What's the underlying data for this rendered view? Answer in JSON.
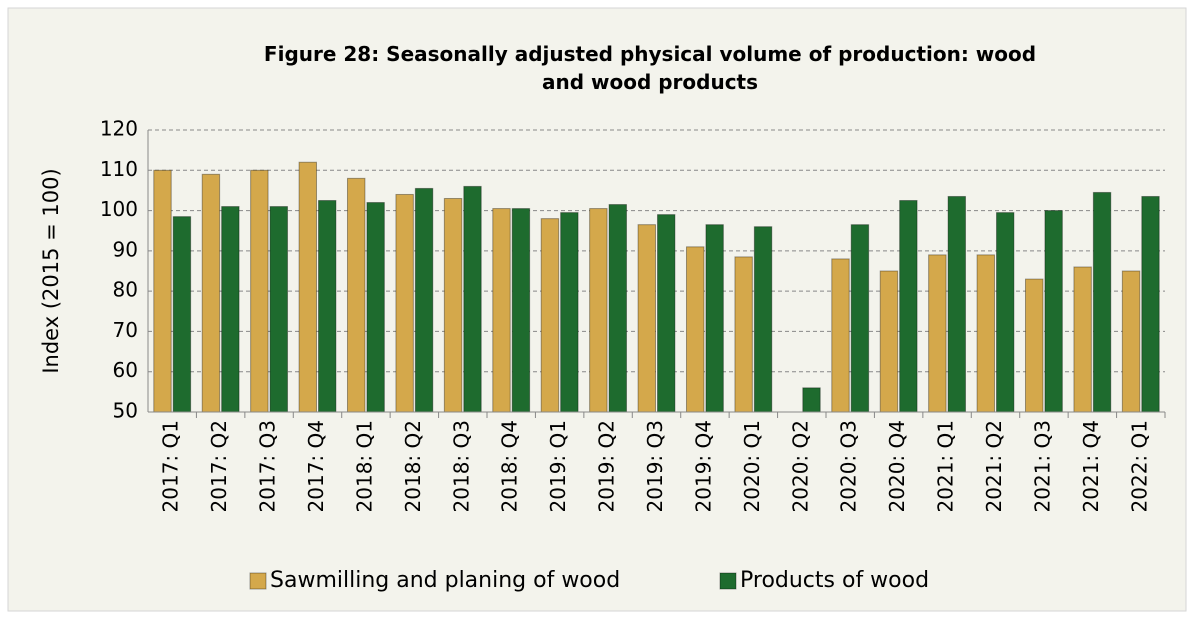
{
  "chart_data": {
    "type": "bar",
    "title": "Figure 28: Seasonally adjusted physical volume of production: wood and wood products",
    "y_label": "Index (2015 = 100)",
    "categories": [
      "2017: Q1",
      "2017: Q2",
      "2017: Q3",
      "2017: Q4",
      "2018: Q1",
      "2018: Q2",
      "2018: Q3",
      "2018: Q4",
      "2019: Q1",
      "2019: Q2",
      "2019: Q3",
      "2019: Q4",
      "2020: Q1",
      "2020: Q2",
      "2020: Q3",
      "2020: Q4",
      "2021: Q1",
      "2021: Q2",
      "2021: Q3",
      "2021: Q4",
      "2022: Q1"
    ],
    "series": [
      {
        "name": "Sawmilling and planing of wood",
        "color": "#d4a84b",
        "values": [
          110,
          109,
          110,
          112,
          108,
          104,
          103,
          100.5,
          98,
          100.5,
          96.5,
          91,
          88.5,
          50,
          88,
          85,
          89,
          89,
          83,
          86,
          85
        ]
      },
      {
        "name": "Products of wood",
        "color": "#1e6b2e",
        "values": [
          98.5,
          101,
          101,
          102.5,
          102,
          105.5,
          106,
          100.5,
          99.5,
          101.5,
          99,
          96.5,
          96,
          56,
          96.5,
          102.5,
          103.5,
          99.5,
          100,
          104.5,
          103.5
        ]
      }
    ],
    "ylim": [
      50,
      120
    ],
    "yticks": [
      50,
      60,
      70,
      80,
      90,
      100,
      110,
      120
    ],
    "grid": true,
    "legend": "bottom"
  }
}
